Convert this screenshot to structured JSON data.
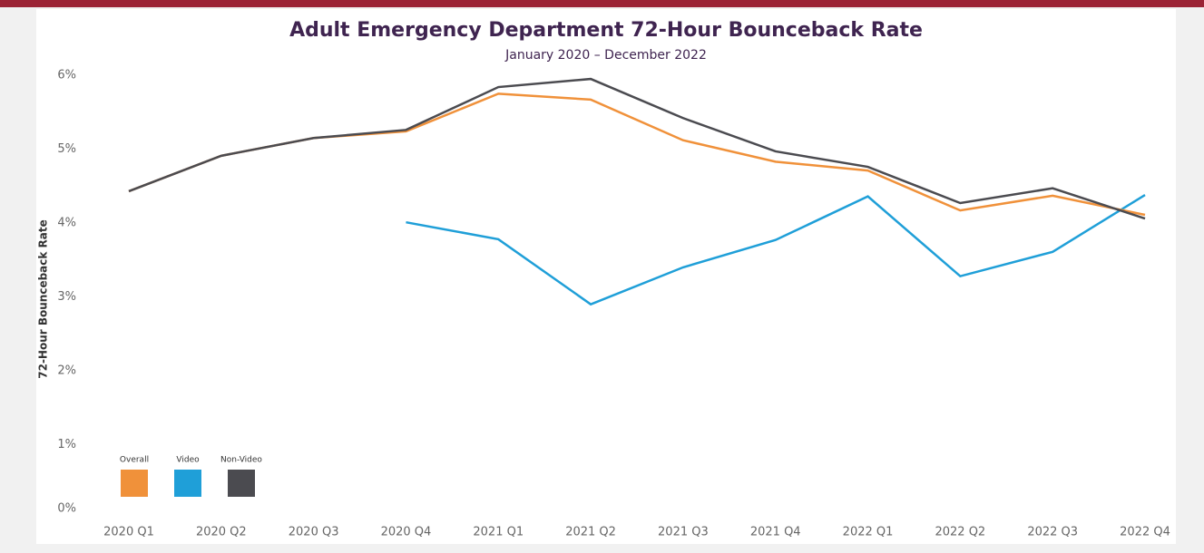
{
  "chart_data": {
    "type": "line",
    "title": "Adult Emergency Department 72-Hour Bounceback Rate",
    "subtitle": "January 2020 – December 2022",
    "y_label": "72-Hour Bounceback Rate",
    "categories": [
      "2020 Q1",
      "2020 Q2",
      "2020 Q3",
      "2020 Q4",
      "2021 Q1",
      "2021 Q2",
      "2021 Q3",
      "2021 Q4",
      "2022 Q1",
      "2022 Q2",
      "2022 Q3",
      "2022 Q4"
    ],
    "series": [
      {
        "name": "Overall",
        "color": "#f0913a",
        "values": [
          4.43,
          4.91,
          5.15,
          5.24,
          5.75,
          5.67,
          5.12,
          4.83,
          4.71,
          4.17,
          4.37,
          4.11
        ]
      },
      {
        "name": "Video",
        "color": "#1f9fd8",
        "values": [
          null,
          null,
          null,
          4.01,
          3.78,
          2.9,
          3.4,
          3.77,
          4.36,
          3.28,
          3.61,
          4.38
        ]
      },
      {
        "name": "Non-Video",
        "color": "#4b4b50",
        "values": [
          4.43,
          4.91,
          5.15,
          5.26,
          5.84,
          5.95,
          5.42,
          4.97,
          4.76,
          4.27,
          4.47,
          4.06
        ]
      }
    ],
    "ylim": [
      0,
      6
    ],
    "yticks": [
      {
        "value": 0,
        "label": "0%"
      },
      {
        "value": 1,
        "label": "1%"
      },
      {
        "value": 2,
        "label": "2%"
      },
      {
        "value": 3,
        "label": "3%"
      },
      {
        "value": 4,
        "label": "4%"
      },
      {
        "value": 5,
        "label": "5%"
      },
      {
        "value": 6,
        "label": "6%"
      }
    ],
    "legend": "lower left"
  }
}
